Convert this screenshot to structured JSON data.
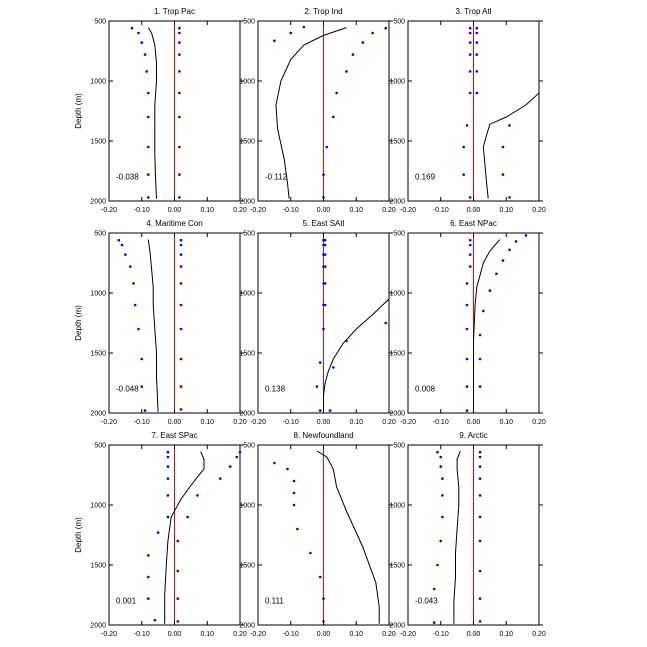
{
  "chart_data": {
    "type": "line",
    "panel_count": 9,
    "xlim": [
      -0.2,
      0.2
    ],
    "ylim": [
      2000,
      500
    ],
    "x_ticks": [
      -0.2,
      -0.1,
      0.0,
      0.1,
      0.2
    ],
    "x_tick_labels": [
      "-0.20",
      "-0.10",
      "0.00",
      "0.10",
      "0.20"
    ],
    "y_ticks": [
      500,
      1000,
      1500,
      2000
    ],
    "y_tick_labels": [
      "500",
      "1000",
      "1500",
      "2000"
    ],
    "ylabel": "Depth (m)",
    "colors": {
      "profile": "#000000",
      "zero_line": "#ff0000",
      "dots": "#0000ff"
    },
    "panels": [
      {
        "title": "1. Trop Pac",
        "corr_label": "-0.038",
        "profile": [
          [
            -0.08,
            555
          ],
          [
            -0.07,
            600
          ],
          [
            -0.06,
            700
          ],
          [
            -0.055,
            850
          ],
          [
            -0.055,
            1000
          ],
          [
            -0.06,
            1200
          ],
          [
            -0.06,
            1400
          ],
          [
            -0.06,
            1600
          ],
          [
            -0.058,
            1800
          ],
          [
            -0.055,
            1980
          ]
        ],
        "dots_left": [
          [
            -0.13,
            560
          ],
          [
            -0.11,
            600
          ],
          [
            -0.1,
            680
          ],
          [
            -0.09,
            780
          ],
          [
            -0.085,
            920
          ],
          [
            -0.08,
            1100
          ],
          [
            -0.08,
            1300
          ],
          [
            -0.08,
            1550
          ],
          [
            -0.08,
            1780
          ],
          [
            -0.08,
            1970
          ]
        ],
        "dots_right": [
          [
            0.015,
            560
          ],
          [
            0.015,
            600
          ],
          [
            0.015,
            680
          ],
          [
            0.015,
            780
          ],
          [
            0.015,
            920
          ],
          [
            0.015,
            1100
          ],
          [
            0.015,
            1300
          ],
          [
            0.015,
            1550
          ],
          [
            0.015,
            1780
          ],
          [
            0.015,
            1970
          ]
        ]
      },
      {
        "title": "2. Trop Ind",
        "corr_label": "-0.112",
        "profile": [
          [
            0.07,
            555
          ],
          [
            0.0,
            620
          ],
          [
            -0.06,
            700
          ],
          [
            -0.1,
            820
          ],
          [
            -0.13,
            1000
          ],
          [
            -0.145,
            1200
          ],
          [
            -0.14,
            1400
          ],
          [
            -0.12,
            1650
          ],
          [
            -0.11,
            1850
          ],
          [
            -0.105,
            1980
          ]
        ],
        "dots_left": [
          [
            -0.06,
            550
          ],
          [
            -0.1,
            600
          ],
          [
            -0.15,
            665
          ]
        ],
        "dots_right": [
          [
            0.19,
            560
          ],
          [
            0.15,
            600
          ],
          [
            0.12,
            680
          ],
          [
            0.09,
            780
          ],
          [
            0.07,
            920
          ],
          [
            0.04,
            1100
          ],
          [
            0.03,
            1300
          ],
          [
            0.01,
            1550
          ],
          [
            0.0,
            1780
          ],
          [
            0.0,
            1970
          ]
        ]
      },
      {
        "title": "3. Trop Atl",
        "corr_label": "0.169",
        "profile": [
          [
            0.2,
            1100
          ],
          [
            0.16,
            1200
          ],
          [
            0.1,
            1300
          ],
          [
            0.05,
            1360
          ],
          [
            0.04,
            1450
          ],
          [
            0.03,
            1550
          ],
          [
            0.035,
            1700
          ],
          [
            0.04,
            1850
          ],
          [
            0.045,
            1980
          ]
        ],
        "dots_left": [
          [
            -0.01,
            560
          ],
          [
            -0.01,
            600
          ],
          [
            -0.01,
            680
          ],
          [
            -0.01,
            780
          ],
          [
            -0.01,
            920
          ],
          [
            -0.01,
            1100
          ],
          [
            -0.02,
            1370
          ],
          [
            -0.03,
            1550
          ],
          [
            -0.03,
            1780
          ],
          [
            -0.01,
            1970
          ]
        ],
        "dots_right": [
          [
            0.01,
            560
          ],
          [
            0.01,
            600
          ],
          [
            0.01,
            680
          ],
          [
            0.01,
            780
          ],
          [
            0.01,
            920
          ],
          [
            0.01,
            1100
          ],
          [
            0.11,
            1370
          ],
          [
            0.09,
            1550
          ],
          [
            0.09,
            1780
          ],
          [
            0.11,
            1970
          ]
        ]
      },
      {
        "title": "4. Maritime Con",
        "corr_label": "-0.048",
        "profile": [
          [
            -0.08,
            555
          ],
          [
            -0.075,
            650
          ],
          [
            -0.07,
            800
          ],
          [
            -0.065,
            950
          ],
          [
            -0.065,
            1100
          ],
          [
            -0.06,
            1300
          ],
          [
            -0.055,
            1500
          ],
          [
            -0.055,
            1700
          ],
          [
            -0.05,
            1990
          ]
        ],
        "dots_left": [
          [
            -0.17,
            560
          ],
          [
            -0.16,
            600
          ],
          [
            -0.15,
            680
          ],
          [
            -0.135,
            780
          ],
          [
            -0.125,
            920
          ],
          [
            -0.12,
            1100
          ],
          [
            -0.11,
            1300
          ],
          [
            -0.1,
            1550
          ],
          [
            -0.1,
            1780
          ],
          [
            -0.09,
            1980
          ]
        ],
        "dots_right": [
          [
            0.02,
            560
          ],
          [
            0.02,
            600
          ],
          [
            0.02,
            680
          ],
          [
            0.02,
            780
          ],
          [
            0.02,
            920
          ],
          [
            0.02,
            1100
          ],
          [
            0.02,
            1300
          ],
          [
            0.02,
            1550
          ],
          [
            0.02,
            1780
          ],
          [
            0.02,
            1970
          ]
        ]
      },
      {
        "title": "5. East SAtl",
        "corr_label": "0.138",
        "profile": [
          [
            0.2,
            1050
          ],
          [
            0.15,
            1180
          ],
          [
            0.1,
            1300
          ],
          [
            0.06,
            1420
          ],
          [
            0.03,
            1550
          ],
          [
            0.015,
            1650
          ],
          [
            0.005,
            1750
          ],
          [
            0.0,
            1850
          ],
          [
            0.0,
            1990
          ]
        ],
        "dots_left": [
          [
            0.0,
            560
          ],
          [
            0.0,
            600
          ],
          [
            0.0,
            680
          ],
          [
            0.0,
            780
          ],
          [
            0.0,
            920
          ],
          [
            0.0,
            1100
          ],
          [
            0.0,
            1300
          ],
          [
            -0.01,
            1580
          ],
          [
            -0.02,
            1780
          ],
          [
            -0.01,
            1980
          ]
        ],
        "dots_right": [
          [
            0.005,
            560
          ],
          [
            0.005,
            600
          ],
          [
            0.005,
            680
          ],
          [
            0.005,
            780
          ],
          [
            0.005,
            920
          ],
          [
            0.005,
            1100
          ],
          [
            0.19,
            1250
          ],
          [
            0.07,
            1400
          ],
          [
            0.03,
            1620
          ],
          [
            0.02,
            1980
          ]
        ]
      },
      {
        "title": "6. East NPac",
        "corr_label": "0.008",
        "profile": [
          [
            0.08,
            555
          ],
          [
            0.05,
            650
          ],
          [
            0.03,
            750
          ],
          [
            0.02,
            850
          ],
          [
            0.01,
            950
          ],
          [
            0.005,
            1100
          ],
          [
            0.0,
            1400
          ],
          [
            0.0,
            1990
          ]
        ],
        "dots_left": [
          [
            -0.01,
            560
          ],
          [
            -0.01,
            600
          ],
          [
            -0.01,
            680
          ],
          [
            -0.01,
            780
          ],
          [
            -0.02,
            920
          ],
          [
            -0.02,
            1100
          ],
          [
            -0.02,
            1300
          ],
          [
            -0.02,
            1550
          ],
          [
            -0.02,
            1780
          ],
          [
            -0.02,
            1980
          ]
        ],
        "dots_right": [
          [
            0.16,
            520
          ],
          [
            0.13,
            570
          ],
          [
            0.11,
            640
          ],
          [
            0.09,
            730
          ],
          [
            0.07,
            840
          ],
          [
            0.05,
            980
          ],
          [
            0.03,
            1150
          ],
          [
            0.02,
            1350
          ],
          [
            0.02,
            1550
          ],
          [
            0.02,
            1780
          ]
        ]
      },
      {
        "title": "7. East SPac",
        "corr_label": "0.001",
        "profile": [
          [
            0.08,
            555
          ],
          [
            0.09,
            620
          ],
          [
            0.09,
            700
          ],
          [
            0.06,
            800
          ],
          [
            0.02,
            950
          ],
          [
            -0.01,
            1100
          ],
          [
            -0.02,
            1300
          ],
          [
            -0.025,
            1500
          ],
          [
            -0.03,
            1750
          ],
          [
            -0.03,
            1990
          ]
        ],
        "dots_left": [
          [
            -0.02,
            560
          ],
          [
            -0.02,
            600
          ],
          [
            -0.02,
            680
          ],
          [
            -0.02,
            780
          ],
          [
            -0.02,
            920
          ],
          [
            -0.02,
            1100
          ],
          [
            -0.05,
            1230
          ],
          [
            -0.08,
            1420
          ],
          [
            -0.08,
            1600
          ],
          [
            -0.08,
            1780
          ],
          [
            -0.06,
            1960
          ]
        ],
        "dots_right": [
          [
            0.2,
            560
          ],
          [
            0.19,
            600
          ],
          [
            0.17,
            680
          ],
          [
            0.14,
            780
          ],
          [
            0.07,
            920
          ],
          [
            0.04,
            1100
          ],
          [
            0.01,
            1300
          ],
          [
            0.01,
            1550
          ],
          [
            0.01,
            1780
          ],
          [
            0.01,
            1970
          ]
        ]
      },
      {
        "title": "8. Newfoundland",
        "corr_label": "0.111",
        "profile": [
          [
            -0.02,
            550
          ],
          [
            0.01,
            600
          ],
          [
            0.03,
            700
          ],
          [
            0.04,
            850
          ],
          [
            0.07,
            1050
          ],
          [
            0.12,
            1350
          ],
          [
            0.16,
            1650
          ],
          [
            0.17,
            1850
          ],
          [
            0.17,
            1990
          ]
        ],
        "dots_left": [
          [
            -0.15,
            650
          ],
          [
            -0.11,
            700
          ],
          [
            -0.09,
            800
          ],
          [
            -0.09,
            900
          ],
          [
            -0.09,
            1000
          ],
          [
            -0.08,
            1200
          ],
          [
            -0.04,
            1400
          ],
          [
            -0.01,
            1600
          ],
          [
            0.0,
            1780
          ],
          [
            0.0,
            1970
          ]
        ],
        "dots_right": []
      },
      {
        "title": "9. Arctic",
        "corr_label": "-0.043",
        "profile": [
          [
            -0.04,
            550
          ],
          [
            -0.05,
            620
          ],
          [
            -0.05,
            700
          ],
          [
            -0.045,
            850
          ],
          [
            -0.045,
            1000
          ],
          [
            -0.05,
            1200
          ],
          [
            -0.055,
            1400
          ],
          [
            -0.055,
            1600
          ],
          [
            -0.06,
            1800
          ],
          [
            -0.06,
            1990
          ]
        ],
        "dots_left": [
          [
            -0.11,
            560
          ],
          [
            -0.1,
            600
          ],
          [
            -0.1,
            680
          ],
          [
            -0.095,
            780
          ],
          [
            -0.095,
            920
          ],
          [
            -0.095,
            1100
          ],
          [
            -0.1,
            1300
          ],
          [
            -0.11,
            1500
          ],
          [
            -0.12,
            1700
          ],
          [
            -0.12,
            1980
          ]
        ],
        "dots_right": [
          [
            0.02,
            560
          ],
          [
            0.02,
            600
          ],
          [
            0.02,
            680
          ],
          [
            0.02,
            780
          ],
          [
            0.02,
            920
          ],
          [
            0.02,
            1100
          ],
          [
            0.02,
            1300
          ],
          [
            0.02,
            1550
          ],
          [
            0.02,
            1780
          ],
          [
            0.02,
            1970
          ]
        ]
      }
    ]
  }
}
